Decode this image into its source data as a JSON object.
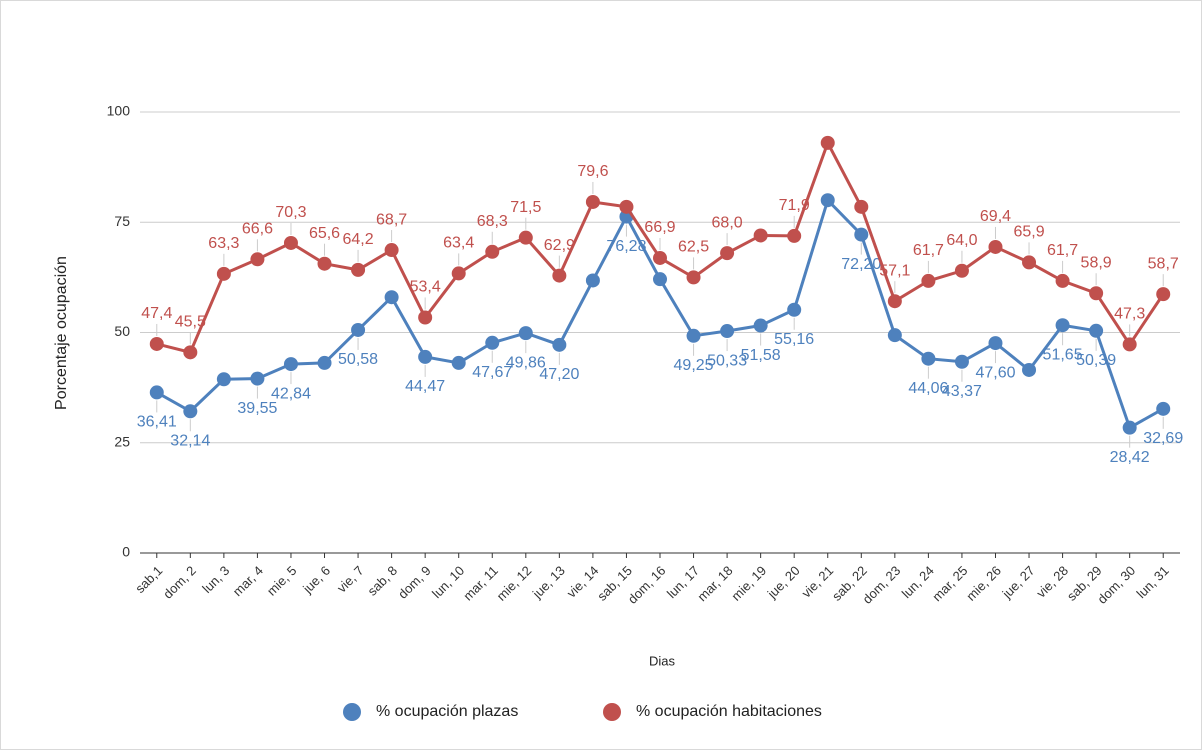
{
  "chart_data": {
    "type": "line",
    "x_label": "Dias",
    "y_label": "Porcentaje ocupación",
    "categories": [
      "sab,1",
      "dom, 2",
      "lun, 3",
      "mar, 4",
      "mie, 5",
      "jue, 6",
      "vie, 7",
      "sab, 8",
      "dom, 9",
      "lun, 10",
      "mar, 11",
      "mie, 12",
      "jue, 13",
      "vie, 14",
      "sab, 15",
      "dom, 16",
      "lun, 17",
      "mar, 18",
      "mie, 19",
      "jue, 20",
      "vie, 21",
      "sab, 22",
      "dom, 23",
      "lun, 24",
      "mar, 25",
      "mie, 26",
      "jue, 27",
      "vie, 28",
      "sab, 29",
      "dom, 30",
      "lun, 31"
    ],
    "series": [
      {
        "name": "% ocupación plazas",
        "color": "#4e81bd",
        "values": [
          36.41,
          32.14,
          39.4,
          39.55,
          42.84,
          43.1,
          50.58,
          58.0,
          44.47,
          43.1,
          47.67,
          49.86,
          47.2,
          61.8,
          76.28,
          62.1,
          49.25,
          50.33,
          51.58,
          55.16,
          80.0,
          72.2,
          49.4,
          44.06,
          43.37,
          47.6,
          41.5,
          51.65,
          50.39,
          28.42,
          32.69
        ],
        "value_labels": [
          "36,41",
          "32,14",
          null,
          "39,55",
          "42,84",
          null,
          "50,58",
          null,
          "44,47",
          null,
          "47,67",
          "49,86",
          "47,20",
          null,
          "76,28",
          null,
          "49,25",
          "50,33",
          "51,58",
          "55,16",
          null,
          "72,20",
          null,
          "44,06",
          "43,37",
          "47,60",
          null,
          "51,65",
          "50,39",
          "28,42",
          "32,69"
        ]
      },
      {
        "name": "% ocupación habitaciones",
        "color": "#c0504d",
        "values": [
          47.4,
          45.5,
          63.3,
          66.6,
          70.3,
          65.6,
          64.2,
          68.7,
          53.4,
          63.4,
          68.3,
          71.5,
          62.9,
          79.6,
          78.5,
          66.9,
          62.5,
          68.0,
          72.0,
          71.9,
          93.0,
          78.5,
          57.1,
          61.7,
          64.0,
          69.4,
          65.9,
          61.7,
          58.9,
          47.3,
          58.7
        ],
        "value_labels": [
          "47,4",
          "45,5",
          "63,3",
          "66,6",
          "70,3",
          "65,6",
          "64,2",
          "68,7",
          "53,4",
          "63,4",
          "68,3",
          "71,5",
          "62,9",
          "79,6",
          null,
          "66,9",
          "62,5",
          "68,0",
          null,
          "71,9",
          null,
          null,
          "57,1",
          "61,7",
          "64,0",
          "69,4",
          "65,9",
          "61,7",
          "58,9",
          "47,3",
          "58,7"
        ]
      }
    ],
    "ylim": [
      0,
      110
    ],
    "yticks": [
      0,
      25,
      50,
      75,
      100
    ],
    "grid": true,
    "legend": "bottom"
  }
}
